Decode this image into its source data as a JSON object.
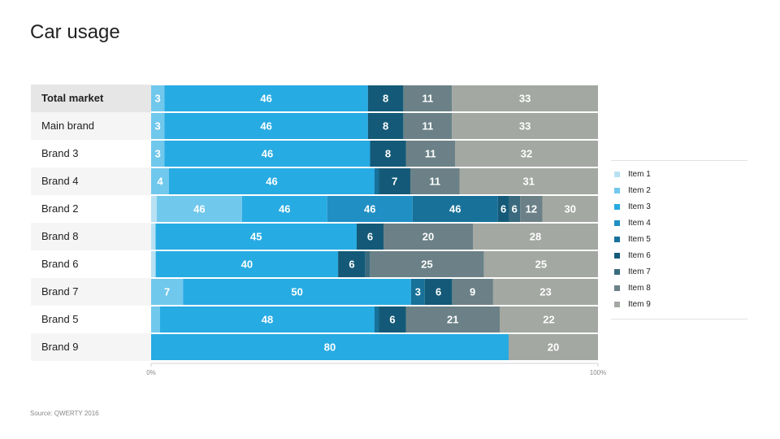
{
  "title": "Car usage",
  "source": "Source: QWERTY 2016",
  "legend": {
    "items": [
      {
        "label": "Item 1",
        "color": "#b7e1f3"
      },
      {
        "label": "Item 2",
        "color": "#70c8ec"
      },
      {
        "label": "Item 3",
        "color": "#27abe3"
      },
      {
        "label": "Item 4",
        "color": "#1f8fc4"
      },
      {
        "label": "Item 5",
        "color": "#187199"
      },
      {
        "label": "Item 6",
        "color": "#145a78"
      },
      {
        "label": "Item 7",
        "color": "#3b6a7e"
      },
      {
        "label": "Item 8",
        "color": "#6b8187"
      },
      {
        "label": "Item 9",
        "color": "#a3a8a2"
      }
    ]
  },
  "chart_data": {
    "type": "bar",
    "orientation": "horizontal",
    "stacked": true,
    "title": "Car usage",
    "categories": [
      "Total market",
      "Main brand",
      "Brand 3",
      "Brand 4",
      "Brand 2",
      "Brand 8",
      "Brand 6",
      "Brand 7",
      "Brand 5",
      "Brand 9"
    ],
    "series": [
      {
        "name": "Item 1",
        "values": [
          0,
          0,
          0,
          0,
          3,
          1,
          1,
          0,
          0,
          0
        ]
      },
      {
        "name": "Item 2",
        "values": [
          3,
          3,
          3,
          4,
          46,
          0,
          0,
          7,
          2,
          0
        ]
      },
      {
        "name": "Item 3",
        "values": [
          46,
          46,
          46,
          46,
          46,
          45,
          40,
          50,
          48,
          80
        ]
      },
      {
        "name": "Item 4",
        "values": [
          0,
          0,
          0,
          0,
          46,
          0,
          0,
          0,
          0,
          0
        ]
      },
      {
        "name": "Item 5",
        "values": [
          0,
          0,
          0,
          1,
          46,
          0,
          0,
          3,
          1,
          0
        ]
      },
      {
        "name": "Item 6",
        "values": [
          8,
          8,
          8,
          7,
          6,
          6,
          6,
          6,
          6,
          0
        ]
      },
      {
        "name": "Item 7",
        "values": [
          0,
          0,
          0,
          0,
          6,
          0,
          1,
          0,
          0,
          0
        ]
      },
      {
        "name": "Item 8",
        "values": [
          11,
          11,
          11,
          11,
          12,
          20,
          25,
          9,
          21,
          0
        ]
      },
      {
        "name": "Item 9",
        "values": [
          33,
          33,
          32,
          31,
          30,
          28,
          25,
          23,
          22,
          20
        ]
      }
    ],
    "x_ticks": [
      "0%",
      "100%"
    ],
    "legend_position": "right",
    "highlighted_category": "Total market"
  }
}
